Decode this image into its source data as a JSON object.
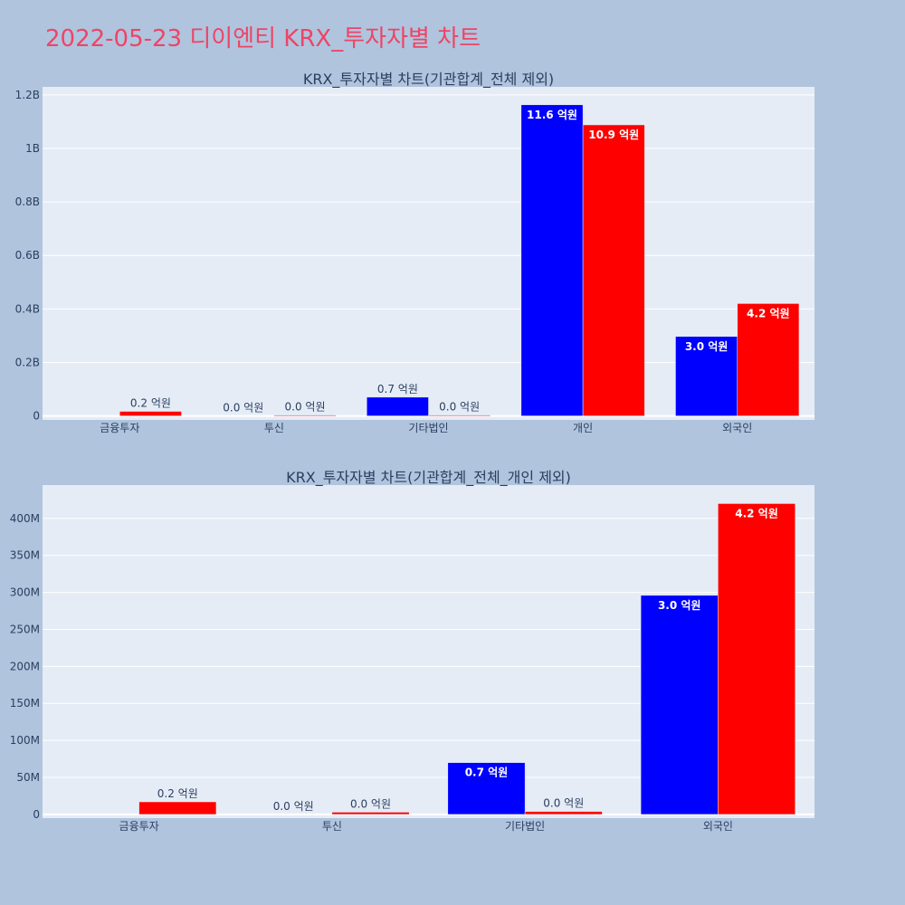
{
  "page": {
    "title": "2022-05-23 디이엔티 KRX_투자자별 차트",
    "title_color": "#ee4466",
    "background": "#b0c4de",
    "plot_background": "#e5ecf6"
  },
  "chart_data": [
    {
      "type": "bar",
      "title": "KRX_투자자별 차트(기관합계_전체 제외)",
      "categories": [
        "금융투자",
        "투신",
        "기타법인",
        "개인",
        "외국인"
      ],
      "ylim": [
        -15000000,
        1230000000
      ],
      "yticks": [
        0,
        200000000,
        400000000,
        600000000,
        800000000,
        1000000000,
        1200000000
      ],
      "ytick_labels": [
        "0",
        "0.2B",
        "0.4B",
        "0.6B",
        "0.8B",
        "1B",
        "1.2B"
      ],
      "series": [
        {
          "color": "#0000ff",
          "values": [
            0,
            0,
            70000000,
            1163000000,
            297000000
          ],
          "labels": [
            "",
            "0.0 억원",
            "0.7 억원",
            "11.6 억원",
            "3.0 억원"
          ]
        },
        {
          "color": "#ff0000",
          "values": [
            17000000,
            3000000,
            3000000,
            1088000000,
            420000000
          ],
          "labels": [
            "0.2 억원",
            "0.0 억원",
            "0.0 억원",
            "10.9 억원",
            "4.2 억원"
          ]
        }
      ],
      "grid": true,
      "legend": "none"
    },
    {
      "type": "bar",
      "title": "KRX_투자자별 차트(기관합계_전체_개인 제외)",
      "categories": [
        "금융투자",
        "투신",
        "기타법인",
        "외국인"
      ],
      "ylim": [
        -5000000,
        445000000
      ],
      "yticks": [
        0,
        50000000,
        100000000,
        150000000,
        200000000,
        250000000,
        300000000,
        350000000,
        400000000
      ],
      "ytick_labels": [
        "0",
        "50M",
        "100M",
        "150M",
        "200M",
        "250M",
        "300M",
        "350M",
        "400M"
      ],
      "series": [
        {
          "color": "#0000ff",
          "values": [
            0,
            0,
            70000000,
            296000000
          ],
          "labels": [
            "",
            "0.0 억원",
            "0.7 억원",
            "3.0 억원"
          ]
        },
        {
          "color": "#ff0000",
          "values": [
            17000000,
            3000000,
            4000000,
            420000000
          ],
          "labels": [
            "0.2 억원",
            "0.0 억원",
            "0.0 억원",
            "4.2 억원"
          ]
        }
      ],
      "grid": true,
      "legend": "none"
    }
  ]
}
